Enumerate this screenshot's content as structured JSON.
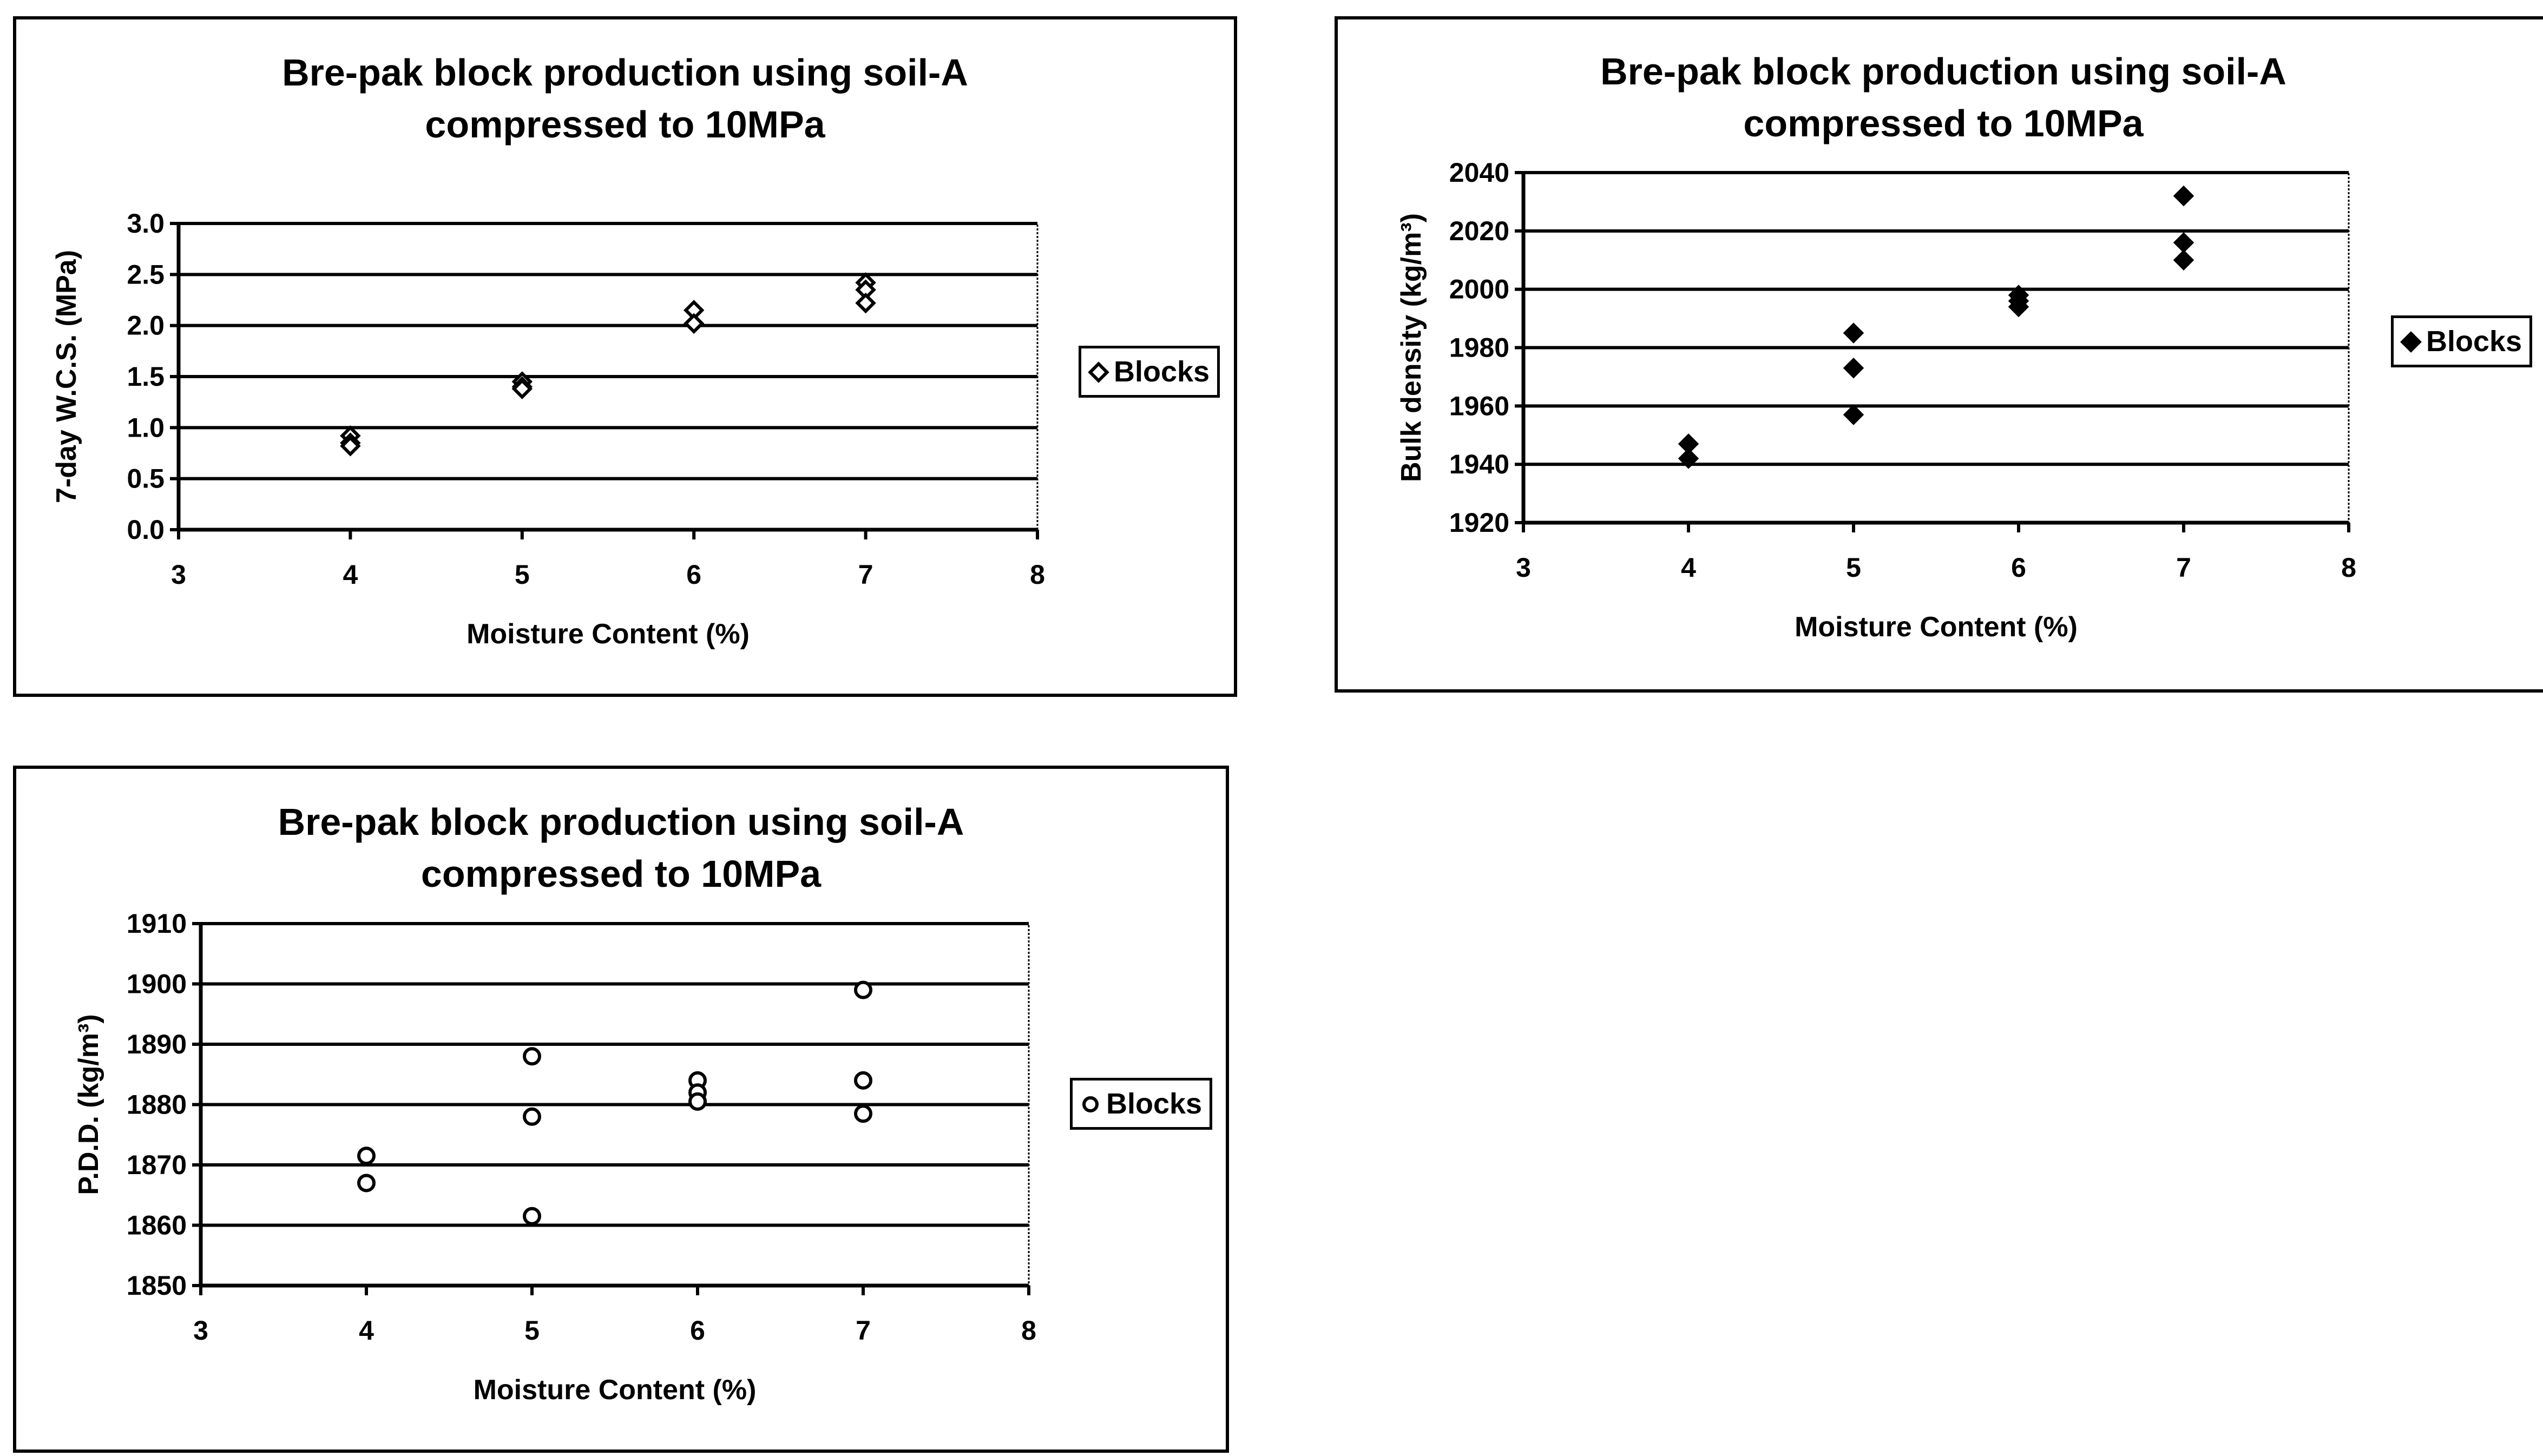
{
  "charts": [
    {
      "title_line1": "Bre-pak block production using soil-A",
      "title_line2": "compressed to 10MPa",
      "legend_label": "Blocks",
      "marker": "diamond-open"
    },
    {
      "title_line1": "Bre-pak block production using soil-A",
      "title_line2": "compressed to 10MPa",
      "legend_label": "Blocks",
      "marker": "diamond-filled"
    },
    {
      "title_line1": "Bre-pak block production using soil-A",
      "title_line2": "compressed to 10MPa",
      "legend_label": "Blocks",
      "marker": "circle-open"
    }
  ],
  "chart_data": [
    {
      "type": "scatter",
      "title": "Bre-pak block production using soil-A compressed to 10MPa",
      "xlabel": "Moisture Content (%)",
      "ylabel": "7-day W.C.S. (MPa)",
      "xlim": [
        3,
        8
      ],
      "ylim": [
        0,
        3
      ],
      "xticks": [
        3,
        4,
        5,
        6,
        7,
        8
      ],
      "yticks": [
        0,
        0.5,
        1,
        1.5,
        2,
        2.5,
        3
      ],
      "xtick_labels": [
        "3",
        "4",
        "5",
        "6",
        "7",
        "8"
      ],
      "ytick_labels": [
        "0.0",
        "0.5",
        "1.0",
        "1.5",
        "2.0",
        "2.5",
        "3.0"
      ],
      "grid": "horizontal",
      "legend_position": "right",
      "series": [
        {
          "name": "Blocks",
          "marker": "diamond",
          "points": [
            [
              4,
              0.92
            ],
            [
              4,
              0.85
            ],
            [
              4,
              0.82
            ],
            [
              5,
              1.45
            ],
            [
              5,
              1.4
            ],
            [
              5,
              1.38
            ],
            [
              6,
              2.15
            ],
            [
              6,
              2.02
            ],
            [
              7,
              2.42
            ],
            [
              7,
              2.35
            ],
            [
              7,
              2.22
            ]
          ]
        }
      ]
    },
    {
      "type": "scatter",
      "title": "Bre-pak block production using soil-A compressed to 10MPa",
      "xlabel": "Moisture Content (%)",
      "ylabel": "Bulk density (kg/m³)",
      "xlim": [
        3,
        8
      ],
      "ylim": [
        1920,
        2040
      ],
      "xticks": [
        3,
        4,
        5,
        6,
        7,
        8
      ],
      "yticks": [
        1920,
        1940,
        1960,
        1980,
        2000,
        2020,
        2040
      ],
      "xtick_labels": [
        "3",
        "4",
        "5",
        "6",
        "7",
        "8"
      ],
      "ytick_labels": [
        "1920",
        "1940",
        "1960",
        "1980",
        "2000",
        "2020",
        "2040"
      ],
      "grid": "horizontal",
      "legend_position": "right",
      "series": [
        {
          "name": "Blocks",
          "marker": "diamond",
          "points": [
            [
              4,
              1947
            ],
            [
              4,
              1942
            ],
            [
              5,
              1985
            ],
            [
              5,
              1973
            ],
            [
              5,
              1957
            ],
            [
              6,
              1998
            ],
            [
              6,
              1996
            ],
            [
              6,
              1994
            ],
            [
              7,
              2032
            ],
            [
              7,
              2016
            ],
            [
              7,
              2010
            ]
          ]
        }
      ]
    },
    {
      "type": "scatter",
      "title": "Bre-pak block production using soil-A compressed to 10MPa",
      "xlabel": "Moisture Content (%)",
      "ylabel": "P.D.D. (kg/m³)",
      "xlim": [
        3,
        8
      ],
      "ylim": [
        1850,
        1910
      ],
      "xticks": [
        3,
        4,
        5,
        6,
        7,
        8
      ],
      "yticks": [
        1850,
        1860,
        1870,
        1880,
        1890,
        1900,
        1910
      ],
      "xtick_labels": [
        "3",
        "4",
        "5",
        "6",
        "7",
        "8"
      ],
      "ytick_labels": [
        "1850",
        "1860",
        "1870",
        "1880",
        "1890",
        "1900",
        "1910"
      ],
      "grid": "horizontal",
      "legend_position": "right",
      "series": [
        {
          "name": "Blocks",
          "marker": "circle",
          "points": [
            [
              4,
              1871.5
            ],
            [
              4,
              1867
            ],
            [
              5,
              1888
            ],
            [
              5,
              1878
            ],
            [
              5,
              1861.5
            ],
            [
              6,
              1884
            ],
            [
              6,
              1882
            ],
            [
              6,
              1880.5
            ],
            [
              7,
              1899
            ],
            [
              7,
              1884
            ],
            [
              7,
              1878.5
            ]
          ]
        }
      ]
    }
  ]
}
